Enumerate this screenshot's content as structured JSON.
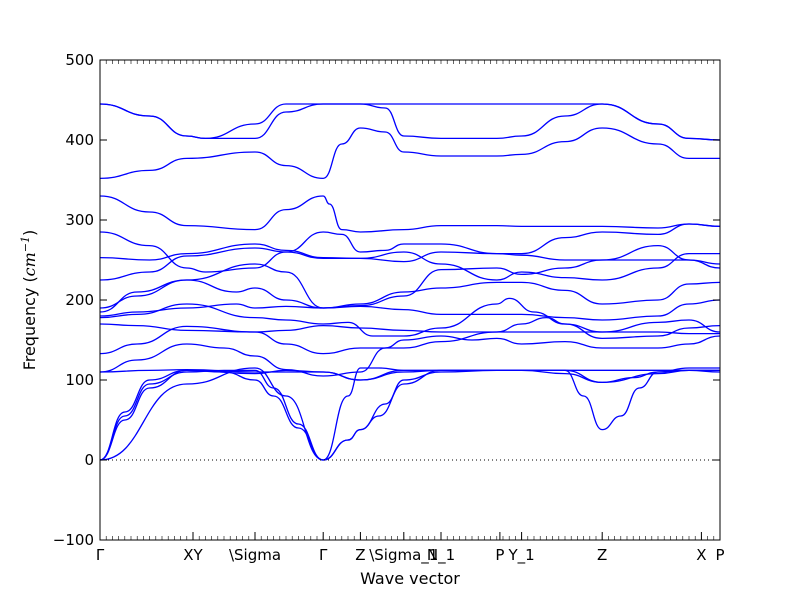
{
  "chart_data": {
    "type": "line",
    "title": "",
    "xlabel": "Wave vector",
    "ylabel_prefix": "Frequency (",
    "ylabel_unit": "cm",
    "ylabel_exp": "−1",
    "ylabel_suffix": ")",
    "x_range": [
      0,
      100
    ],
    "ylim": [
      -100,
      500
    ],
    "y_ticks": [
      -100,
      0,
      100,
      200,
      300,
      400,
      500
    ],
    "x_ticks": [
      {
        "label": "Γ",
        "x": 0
      },
      {
        "label": "XY",
        "x": 15
      },
      {
        "label": "\\Sigma",
        "x": 25
      },
      {
        "label": "Γ",
        "x": 36
      },
      {
        "label": "Z",
        "x": 42
      },
      {
        "label": "\\Sigma_1",
        "x": 49
      },
      {
        "label": "N_1",
        "x": 55
      },
      {
        "label": "P",
        "x": 64.5
      },
      {
        "label": "Y_1",
        "x": 68
      },
      {
        "label": "Z",
        "x": 81
      },
      {
        "label": "X",
        "x": 97
      },
      {
        "label": "P",
        "x": 100
      }
    ],
    "zero_line": 0,
    "line_color": "#0000ff",
    "series": [
      {
        "x": [
          0,
          8,
          14,
          17,
          25,
          30,
          36,
          39,
          42,
          46,
          49,
          55,
          60,
          64,
          68,
          75,
          81,
          90,
          95,
          100
        ],
        "y": [
          445,
          430,
          405,
          402,
          420,
          445,
          445,
          445,
          445,
          445,
          445,
          445,
          445,
          445,
          445,
          445,
          445,
          420,
          402,
          400
        ]
      },
      {
        "x": [
          0,
          8,
          14,
          17,
          23,
          25,
          30,
          36,
          39,
          42,
          46,
          49,
          55,
          60,
          64,
          68,
          75,
          81,
          90,
          95,
          100
        ],
        "y": [
          445,
          430,
          405,
          402,
          402,
          402,
          435,
          445,
          445,
          445,
          440,
          405,
          402,
          402,
          402,
          405,
          430,
          445,
          420,
          402,
          400
        ]
      },
      {
        "x": [
          0,
          8,
          14,
          25,
          30,
          36,
          39,
          42,
          46,
          49,
          55,
          60,
          64,
          68,
          75,
          81,
          90,
          95,
          100
        ],
        "y": [
          352,
          362,
          377,
          385,
          368,
          352,
          395,
          415,
          410,
          385,
          380,
          380,
          380,
          382,
          398,
          415,
          395,
          377,
          377
        ]
      },
      {
        "x": [
          0,
          8,
          14,
          25,
          30,
          36,
          37,
          39,
          42,
          49,
          55,
          60,
          64,
          68,
          75,
          81,
          90,
          95,
          100
        ],
        "y": [
          330,
          310,
          293,
          288,
          313,
          330,
          320,
          288,
          285,
          288,
          293,
          293,
          293,
          292,
          292,
          292,
          290,
          295,
          292
        ]
      },
      {
        "x": [
          0,
          8,
          14,
          17,
          25,
          30,
          36,
          39,
          42,
          46,
          49,
          55,
          64,
          68,
          75,
          81,
          90,
          95,
          100
        ],
        "y": [
          285,
          268,
          240,
          235,
          240,
          260,
          285,
          282,
          260,
          262,
          270,
          270,
          258,
          258,
          278,
          285,
          282,
          295,
          292
        ]
      },
      {
        "x": [
          0,
          8,
          14,
          25,
          30,
          36,
          42,
          49,
          55,
          64,
          68,
          75,
          81,
          90,
          95,
          100
        ],
        "y": [
          253,
          250,
          258,
          270,
          262,
          253,
          252,
          248,
          260,
          258,
          256,
          250,
          250,
          268,
          250,
          240
        ]
      },
      {
        "x": [
          0,
          8,
          14,
          25,
          30,
          36,
          42,
          49,
          55,
          64,
          68,
          75,
          81,
          90,
          95,
          100
        ],
        "y": [
          225,
          235,
          255,
          265,
          260,
          252,
          252,
          260,
          245,
          225,
          235,
          228,
          225,
          240,
          258,
          258
        ]
      },
      {
        "x": [
          0,
          6,
          14,
          25,
          30,
          36,
          42,
          49,
          55,
          64,
          68,
          75,
          81,
          90,
          95,
          100
        ],
        "y": [
          190,
          205,
          225,
          245,
          235,
          190,
          193,
          205,
          238,
          240,
          232,
          240,
          250,
          250,
          250,
          245
        ]
      },
      {
        "x": [
          0,
          6,
          14,
          22,
          25,
          30,
          36,
          42,
          49,
          55,
          64,
          68,
          75,
          81,
          90,
          95,
          100
        ],
        "y": [
          185,
          210,
          225,
          210,
          215,
          200,
          190,
          195,
          210,
          215,
          222,
          222,
          212,
          195,
          200,
          220,
          222
        ]
      },
      {
        "x": [
          0,
          6,
          14,
          22,
          25,
          30,
          36,
          42,
          49,
          55,
          64,
          68,
          75,
          81,
          90,
          95,
          100
        ],
        "y": [
          180,
          185,
          190,
          195,
          190,
          192,
          190,
          192,
          188,
          182,
          182,
          182,
          178,
          175,
          180,
          195,
          200
        ]
      },
      {
        "x": [
          0,
          6,
          14,
          25,
          30,
          36,
          40,
          44,
          49,
          55,
          64,
          66,
          70,
          75,
          81,
          90,
          95,
          100
        ],
        "y": [
          178,
          182,
          195,
          178,
          175,
          170,
          172,
          155,
          155,
          165,
          195,
          202,
          185,
          170,
          160,
          172,
          175,
          160
        ]
      },
      {
        "x": [
          0,
          6,
          14,
          25,
          30,
          36,
          42,
          49,
          55,
          64,
          68,
          75,
          81,
          90,
          95,
          100
        ],
        "y": [
          170,
          168,
          162,
          160,
          162,
          168,
          165,
          162,
          160,
          160,
          160,
          160,
          160,
          160,
          158,
          158
        ]
      },
      {
        "x": [
          0,
          6,
          14,
          25,
          30,
          36,
          42,
          49,
          55,
          64,
          68,
          72,
          75,
          81,
          90,
          95,
          100
        ],
        "y": [
          133,
          145,
          167,
          160,
          145,
          133,
          140,
          140,
          148,
          160,
          170,
          178,
          170,
          152,
          155,
          165,
          168
        ]
      },
      {
        "x": [
          0,
          6,
          14,
          20,
          25,
          30,
          36,
          42,
          46,
          49,
          55,
          60,
          64,
          68,
          75,
          81,
          90,
          95,
          100
        ],
        "y": [
          110,
          125,
          145,
          140,
          130,
          113,
          105,
          110,
          140,
          150,
          155,
          150,
          152,
          145,
          148,
          140,
          140,
          145,
          155
        ]
      },
      {
        "x": [
          0,
          8,
          14,
          25,
          30,
          36,
          42,
          49,
          55,
          64,
          68,
          75,
          81,
          86,
          90,
          95,
          100
        ],
        "y": [
          110,
          112,
          113,
          110,
          110,
          110,
          100,
          110,
          112,
          112,
          112,
          108,
          97,
          103,
          110,
          112,
          110
        ]
      },
      {
        "x": [
          0,
          4,
          8,
          14,
          25,
          30,
          36,
          42,
          49,
          55,
          64,
          68,
          75,
          81,
          86,
          90,
          95,
          100
        ],
        "y": [
          0,
          60,
          100,
          112,
          108,
          112,
          110,
          100,
          112,
          112,
          112,
          112,
          112,
          112,
          112,
          112,
          112,
          112
        ]
      },
      {
        "x": [
          0,
          4,
          8,
          14,
          20,
          25,
          28,
          32,
          36,
          40,
          42,
          45,
          49,
          55,
          64,
          68,
          75,
          78,
          81,
          84,
          87,
          90,
          95,
          100
        ],
        "y": [
          0,
          50,
          90,
          112,
          110,
          100,
          80,
          40,
          0,
          80,
          115,
          115,
          112,
          112,
          112,
          112,
          112,
          80,
          38,
          55,
          90,
          110,
          115,
          115
        ]
      },
      {
        "x": [
          0,
          4,
          8,
          14,
          20,
          25,
          28,
          32,
          36,
          40,
          42,
          45,
          49,
          55,
          64,
          68,
          75,
          81,
          90,
          95,
          100
        ],
        "y": [
          0,
          55,
          95,
          110,
          112,
          112,
          90,
          45,
          0,
          25,
          38,
          55,
          95,
          112,
          112,
          112,
          112,
          97,
          108,
          112,
          112
        ]
      },
      {
        "x": [
          0,
          14,
          25,
          30,
          36,
          40,
          42,
          46,
          49,
          55,
          64,
          100
        ],
        "y": [
          0,
          95,
          115,
          80,
          0,
          25,
          38,
          70,
          100,
          110,
          112,
          112
        ]
      }
    ]
  }
}
